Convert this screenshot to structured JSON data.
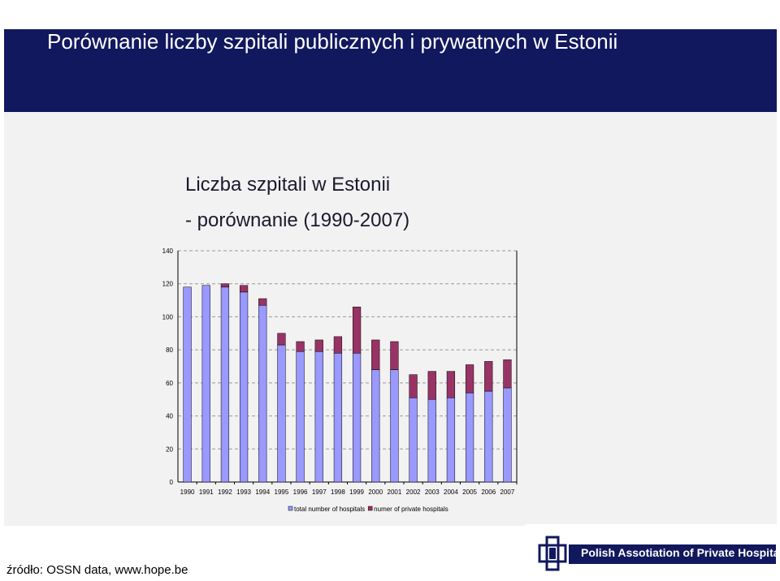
{
  "slide": {
    "title": "Porównanie liczby szpitali publicznych i prywatnych w Estonii",
    "source": "źródło: OSSN data, www.hope.be",
    "logo_text": "Polish Assotiation of Private Hospitals"
  },
  "colors": {
    "header": "#12185e",
    "public": "#9999ff",
    "private": "#993366"
  },
  "chart_data": {
    "type": "bar",
    "stacked": true,
    "title": [
      "Liczba szpitali w Estonii",
      "- porównanie (1990-2007)"
    ],
    "categories": [
      "1990",
      "1991",
      "1992",
      "1993",
      "1994",
      "1995",
      "1996",
      "1997",
      "1998",
      "1999",
      "2000",
      "2001",
      "2002",
      "2003",
      "2004",
      "2005",
      "2006",
      "2007"
    ],
    "series": [
      {
        "name": "total number of hospitals",
        "values": [
          118,
          119,
          118,
          115,
          107,
          83,
          79,
          79,
          78,
          78,
          68,
          68,
          51,
          50,
          51,
          54,
          55,
          57
        ]
      },
      {
        "name": "numer of private hospitals",
        "values": [
          0,
          0,
          2,
          4,
          4,
          7,
          6,
          7,
          10,
          28,
          18,
          17,
          14,
          17,
          16,
          17,
          18,
          17
        ]
      }
    ],
    "ylim": [
      0,
      140
    ],
    "yticks": [
      0,
      20,
      40,
      60,
      80,
      100,
      120,
      140
    ],
    "grid": true,
    "legend": "bottom"
  }
}
